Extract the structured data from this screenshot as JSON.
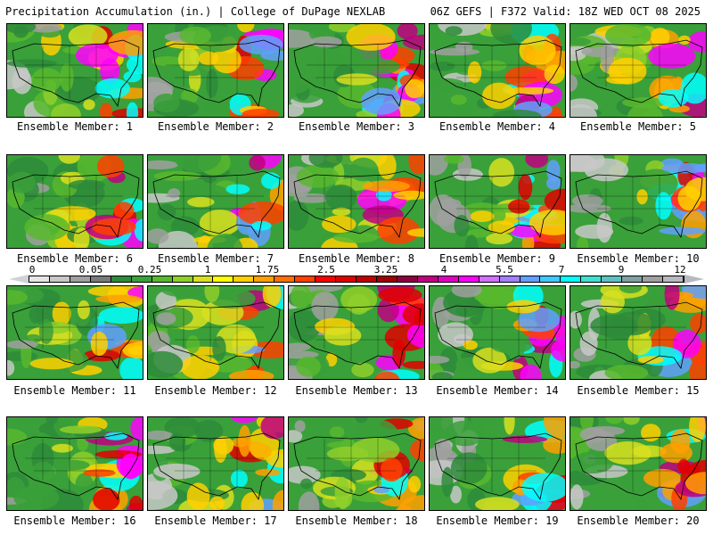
{
  "header": {
    "left": "Precipitation Accumulation (in.) | College of DuPage NEXLAB",
    "right": "06Z GEFS | F372 Valid: 18Z WED OCT 08 2025"
  },
  "members": [
    {
      "label": "Ensemble Member: 1"
    },
    {
      "label": "Ensemble Member: 2"
    },
    {
      "label": "Ensemble Member: 3"
    },
    {
      "label": "Ensemble Member: 4"
    },
    {
      "label": "Ensemble Member: 5"
    },
    {
      "label": "Ensemble Member: 6"
    },
    {
      "label": "Ensemble Member: 7"
    },
    {
      "label": "Ensemble Member: 8"
    },
    {
      "label": "Ensemble Member: 9"
    },
    {
      "label": "Ensemble Member: 10"
    },
    {
      "label": "Ensemble Member: 11"
    },
    {
      "label": "Ensemble Member: 12"
    },
    {
      "label": "Ensemble Member: 13"
    },
    {
      "label": "Ensemble Member: 14"
    },
    {
      "label": "Ensemble Member: 15"
    },
    {
      "label": "Ensemble Member: 16"
    },
    {
      "label": "Ensemble Member: 17"
    },
    {
      "label": "Ensemble Member: 18"
    },
    {
      "label": "Ensemble Member: 19"
    },
    {
      "label": "Ensemble Member: 20"
    }
  ],
  "legend": {
    "ticks": [
      "0",
      "0.05",
      "0.25",
      "1",
      "1.75",
      "2.5",
      "3.25",
      "4",
      "5.5",
      "7",
      "9",
      "12"
    ],
    "colors": [
      "#e6e6e6",
      "#c8c8c8",
      "#a0a0a0",
      "#7a7a7a",
      "#2e8b3a",
      "#3aa03a",
      "#58b82e",
      "#8fcf2a",
      "#d8e020",
      "#ffff00",
      "#ffd000",
      "#ffa000",
      "#ff7000",
      "#ff4000",
      "#ff0000",
      "#e00000",
      "#c00000",
      "#a00000",
      "#900040",
      "#c00080",
      "#e000c0",
      "#ff00ff",
      "#d070ff",
      "#a080ff",
      "#60a0ff",
      "#40c8ff",
      "#00ffff",
      "#40e0d0",
      "#60c0c0",
      "#80a0a0",
      "#a0a0a0",
      "#b8b8c0"
    ]
  }
}
